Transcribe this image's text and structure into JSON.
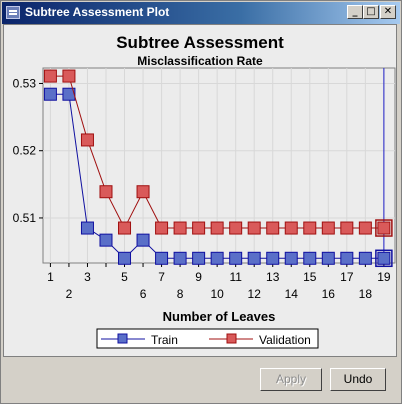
{
  "window": {
    "title": "Subtree Assessment Plot",
    "minimize_glyph": "_",
    "maximize_glyph": "□",
    "close_glyph": "✕"
  },
  "buttons": {
    "apply": "Apply",
    "undo": "Undo"
  },
  "chart_data": {
    "type": "line",
    "title": "Subtree Assessment",
    "subtitle": "Misclassification Rate",
    "xlabel": "Number of Leaves",
    "ylabel": "",
    "x": [
      1,
      2,
      3,
      4,
      5,
      6,
      7,
      8,
      9,
      10,
      11,
      12,
      13,
      14,
      15,
      16,
      17,
      18,
      19
    ],
    "xlim": [
      0.6,
      19.6
    ],
    "ylim": [
      0.5033,
      0.5323
    ],
    "xticks": [
      1,
      2,
      3,
      4,
      5,
      6,
      7,
      8,
      9,
      10,
      11,
      12,
      13,
      14,
      15,
      16,
      17,
      18,
      19
    ],
    "xtick_labels_top": [
      "1",
      "3",
      "5",
      "7",
      "9",
      "11",
      "13",
      "15",
      "17",
      "19"
    ],
    "xtick_labels_bottom": [
      "2",
      "6",
      "8",
      "10",
      "12",
      "14",
      "16",
      "18"
    ],
    "yticks": [
      0.51,
      0.52,
      0.53
    ],
    "ytick_labels": [
      "0.51",
      "0.52",
      "0.53"
    ],
    "selected_x": 19,
    "grid": true,
    "legend_position": "bottom",
    "series": [
      {
        "name": "Train",
        "color": "#5a6fc8",
        "edge": "#1010a0",
        "values": [
          0.5284,
          0.5284,
          0.5085,
          0.5067,
          0.504,
          0.5067,
          0.504,
          0.504,
          0.504,
          0.504,
          0.504,
          0.504,
          0.504,
          0.504,
          0.504,
          0.504,
          0.504,
          0.504,
          0.504
        ]
      },
      {
        "name": "Validation",
        "color": "#d95a5a",
        "edge": "#a01010",
        "values": [
          0.5311,
          0.5311,
          0.5216,
          0.5139,
          0.5085,
          0.5139,
          0.5085,
          0.5085,
          0.5085,
          0.5085,
          0.5085,
          0.5085,
          0.5085,
          0.5085,
          0.5085,
          0.5085,
          0.5085,
          0.5085,
          0.5085
        ]
      }
    ]
  }
}
